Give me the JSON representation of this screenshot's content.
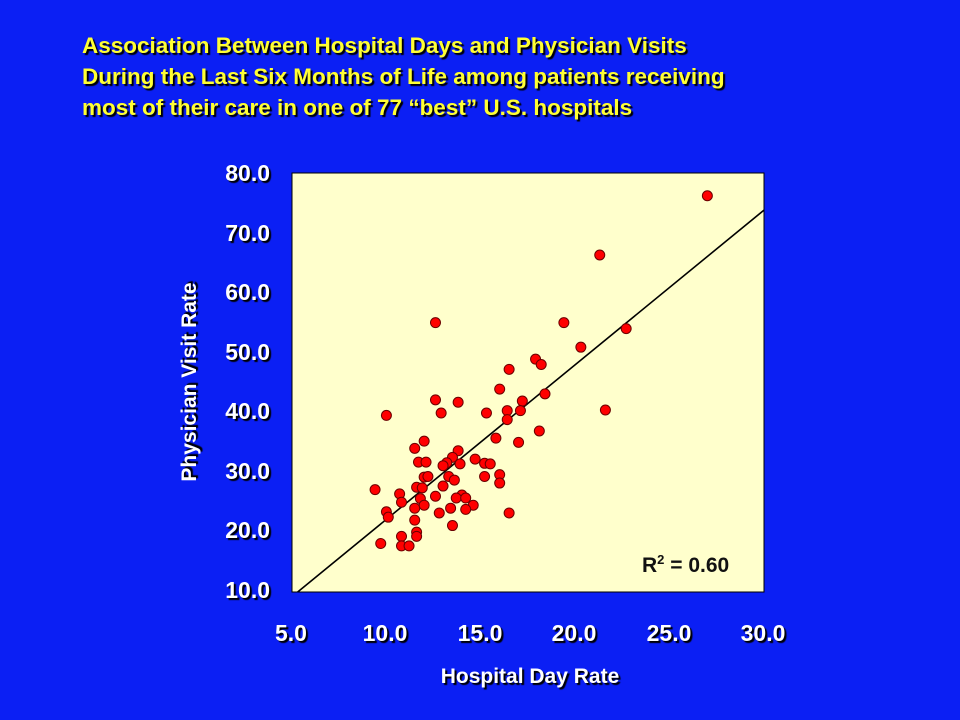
{
  "chart_data": {
    "type": "scatter",
    "title_lines": [
      "Association Between Hospital Days and Physician Visits",
      "During the Last Six Months of Life among patients receiving",
      "most of their care in one of 77 “best” U.S. hospitals"
    ],
    "xlabel": "Hospital Day Rate",
    "ylabel": "Physician Visit Rate",
    "xlim": [
      5.0,
      30.0
    ],
    "ylim": [
      10.0,
      80.0
    ],
    "xticks": [
      "5.0",
      "10.0",
      "15.0",
      "20.0",
      "25.0",
      "30.0"
    ],
    "yticks": [
      "80.0",
      "70.0",
      "60.0",
      "50.0",
      "40.0",
      "30.0",
      "20.0",
      "10.0"
    ],
    "annotation": {
      "prefix": "R",
      "sup": "2",
      "suffix": " = 0.60"
    },
    "trendline": {
      "x": [
        5.3,
        30.0
      ],
      "y": [
        10.0,
        73.8
      ]
    },
    "colors": {
      "background": "#0b1ff4",
      "plot_area": "#ffffcc",
      "points": "#ff0000",
      "title": "#ffff33",
      "axis_text": "#ffffff"
    },
    "points": [
      [
        27.0,
        76.2
      ],
      [
        21.3,
        66.3
      ],
      [
        22.7,
        54.0
      ],
      [
        19.4,
        55.0
      ],
      [
        20.3,
        50.9
      ],
      [
        17.9,
        48.9
      ],
      [
        18.2,
        48.0
      ],
      [
        16.5,
        47.2
      ],
      [
        18.4,
        43.1
      ],
      [
        16.0,
        43.9
      ],
      [
        17.2,
        41.9
      ],
      [
        21.6,
        40.4
      ],
      [
        16.4,
        40.3
      ],
      [
        17.1,
        40.3
      ],
      [
        15.3,
        39.9
      ],
      [
        16.4,
        38.8
      ],
      [
        18.1,
        36.9
      ],
      [
        15.8,
        35.7
      ],
      [
        17.0,
        35.0
      ],
      [
        12.6,
        55.0
      ],
      [
        12.6,
        42.1
      ],
      [
        13.8,
        41.7
      ],
      [
        12.9,
        39.9
      ],
      [
        10.0,
        39.5
      ],
      [
        12.0,
        35.2
      ],
      [
        11.5,
        34.0
      ],
      [
        13.8,
        33.6
      ],
      [
        13.5,
        32.5
      ],
      [
        13.2,
        31.6
      ],
      [
        13.0,
        31.1
      ],
      [
        11.7,
        31.7
      ],
      [
        12.1,
        31.7
      ],
      [
        14.7,
        32.2
      ],
      [
        15.2,
        31.5
      ],
      [
        15.5,
        31.4
      ],
      [
        13.9,
        31.4
      ],
      [
        16.0,
        29.6
      ],
      [
        15.2,
        29.3
      ],
      [
        13.3,
        29.3
      ],
      [
        12.0,
        29.2
      ],
      [
        12.2,
        29.3
      ],
      [
        13.6,
        28.7
      ],
      [
        16.0,
        28.2
      ],
      [
        9.4,
        27.1
      ],
      [
        11.6,
        27.5
      ],
      [
        11.9,
        27.4
      ],
      [
        13.0,
        27.7
      ],
      [
        10.7,
        26.4
      ],
      [
        12.6,
        26.0
      ],
      [
        14.0,
        26.2
      ],
      [
        13.7,
        25.7
      ],
      [
        14.2,
        25.7
      ],
      [
        11.8,
        25.6
      ],
      [
        10.8,
        25.0
      ],
      [
        11.5,
        24.0
      ],
      [
        12.0,
        24.5
      ],
      [
        14.6,
        24.5
      ],
      [
        14.2,
        23.8
      ],
      [
        13.4,
        24.0
      ],
      [
        12.8,
        23.2
      ],
      [
        10.0,
        23.4
      ],
      [
        10.1,
        22.5
      ],
      [
        11.5,
        22.0
      ],
      [
        16.5,
        23.2
      ],
      [
        13.5,
        21.1
      ],
      [
        11.6,
        20.0
      ],
      [
        10.8,
        19.3
      ],
      [
        11.6,
        19.3
      ],
      [
        9.7,
        18.1
      ],
      [
        10.8,
        17.7
      ],
      [
        11.2,
        17.7
      ]
    ]
  }
}
